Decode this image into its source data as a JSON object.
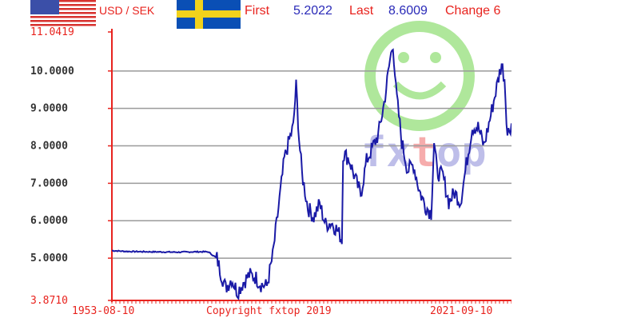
{
  "header": {
    "pair_label": "USD / SEK",
    "first_label": "First",
    "first_value": "5.2022",
    "last_label": "Last",
    "last_value": "8.6009",
    "change_label": "Change 6"
  },
  "copyright": "Copyright fxtop 2019",
  "watermark": "fxtop.com",
  "colors": {
    "series": "#1a1aa6",
    "axis": "#e8231e",
    "grid": "#9a9a9a",
    "header_red": "#e8231e",
    "header_blue": "#2a2ab8",
    "watermark_green": "#6fd54b",
    "watermark_blue": "#8a8ad8",
    "watermark_red": "#f06a6a"
  },
  "icons": [
    "us-flag-icon",
    "sweden-flag-icon",
    "smiley-watermark-icon"
  ],
  "chart_data": {
    "type": "line",
    "title": "",
    "xlabel": "",
    "ylabel": "",
    "xlim": [
      1953.61,
      2021.69
    ],
    "ylim": [
      3.871,
      11.0419
    ],
    "y_ticks": [
      "11.0419",
      "10.0000",
      "9.0000",
      "8.0000",
      "7.0000",
      "6.0000",
      "5.0000",
      "3.8710"
    ],
    "y_tick_values": [
      11.0419,
      10,
      9,
      8,
      7,
      6,
      5,
      3.871
    ],
    "x_tick_labels": [
      "1953-08-10",
      "2021-09-10"
    ],
    "grid": true,
    "series": [
      {
        "values_x": [
          1953.61,
          1956,
          1960,
          1965,
          1968,
          1970,
          1971.5,
          1972,
          1973,
          1974,
          1975,
          1976,
          1977,
          1978,
          1979,
          1980,
          1981,
          1982,
          1983,
          1984,
          1984.5,
          1985,
          1985.5,
          1986,
          1987,
          1988,
          1989,
          1990,
          1991,
          1992,
          1992.8,
          1993,
          1994,
          1995,
          1996,
          1997,
          1998,
          1999,
          2000,
          2001,
          2001.5,
          2002,
          2003,
          2004,
          2005,
          2006,
          2007,
          2008,
          2008.5,
          2009,
          2010,
          2011,
          2012,
          2013,
          2014,
          2015,
          2016,
          2017,
          2018,
          2019,
          2020,
          2020.5,
          2021,
          2021.69
        ],
        "values_y": [
          5.2022,
          5.18,
          5.17,
          5.16,
          5.17,
          5.17,
          5.0,
          4.7,
          4.2,
          4.45,
          4.1,
          4.35,
          4.55,
          4.5,
          4.3,
          4.25,
          5.05,
          6.35,
          7.65,
          8.25,
          8.5,
          9.6,
          8.2,
          7.25,
          6.35,
          6.1,
          6.45,
          5.9,
          5.95,
          5.75,
          5.5,
          7.8,
          7.65,
          7.15,
          6.7,
          7.6,
          7.95,
          8.3,
          9.15,
          10.3,
          10.75,
          9.5,
          8.1,
          7.35,
          7.5,
          6.8,
          6.4,
          6.2,
          8.1,
          7.3,
          7.2,
          6.5,
          6.75,
          6.5,
          7.5,
          8.5,
          8.5,
          8.0,
          8.7,
          9.45,
          10.2,
          9.8,
          8.3,
          8.6009
        ]
      }
    ]
  }
}
